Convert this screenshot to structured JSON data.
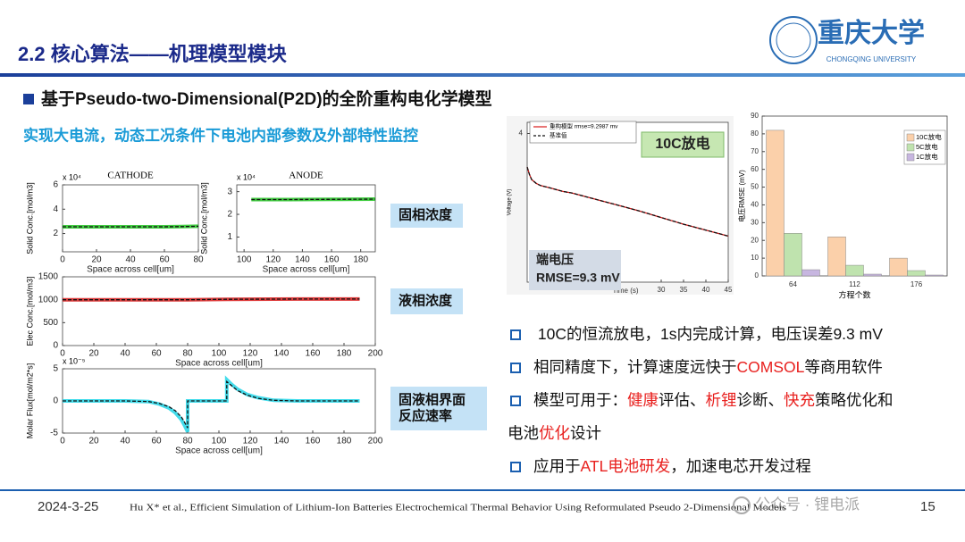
{
  "header": {
    "title": "2.2 核心算法——机理模型模块",
    "logo_name": "重庆大学",
    "logo_subtitle": "CHONGQING UNIVERSITY"
  },
  "heading": "基于Pseudo-two-Dimensional(P2D)的全阶重构电化学模型",
  "subheading": "实现大电流，动态工况条件下电池内部参数及外部特性监控",
  "plots": [
    {
      "title": "CATHODE",
      "exponent": "x 10⁴",
      "xlabel": "Space across cell[um]",
      "ylabel": "Solid Conc.[mol/m3]",
      "xlim": [
        0,
        80
      ],
      "ylim": [
        0.5,
        6
      ],
      "xticks": [
        0,
        20,
        40,
        60,
        80
      ],
      "yticks": [
        2,
        4,
        6
      ],
      "series": [
        {
          "color": "#22c422",
          "line_style": "band",
          "x": [
            0,
            20,
            40,
            60,
            70,
            80
          ],
          "values": [
            2.55,
            2.55,
            2.55,
            2.55,
            2.57,
            2.6
          ]
        },
        {
          "color": "#111111",
          "line_style": "dashed",
          "x": [
            0,
            20,
            40,
            60,
            70,
            80
          ],
          "values": [
            2.55,
            2.55,
            2.55,
            2.55,
            2.57,
            2.6
          ]
        }
      ]
    },
    {
      "title": "ANODE",
      "exponent": "x 10⁴",
      "xlabel": "Space across cell[um]",
      "ylabel": "Solid Conc.[mol/m3]",
      "xlim": [
        95,
        190
      ],
      "ylim": [
        0.35,
        3.3
      ],
      "xticks": [
        100,
        120,
        140,
        160,
        180
      ],
      "yticks": [
        1,
        2,
        3
      ],
      "series": [
        {
          "color": "#22c422",
          "line_style": "band",
          "x": [
            105,
            130,
            160,
            190
          ],
          "values": [
            2.65,
            2.65,
            2.66,
            2.67
          ]
        },
        {
          "color": "#111111",
          "line_style": "dashed",
          "x": [
            105,
            130,
            160,
            190
          ],
          "values": [
            2.65,
            2.65,
            2.66,
            2.67
          ]
        }
      ]
    },
    {
      "xlabel": "Space across cell[um]",
      "ylabel": "Elec Conc.[mol/m3]",
      "xlim": [
        0,
        200
      ],
      "ylim": [
        0,
        1500
      ],
      "xticks": [
        0,
        20,
        40,
        60,
        80,
        100,
        120,
        140,
        160,
        180,
        200
      ],
      "yticks": [
        0,
        500,
        1000,
        1500
      ],
      "series": [
        {
          "color": "#d81b1b",
          "line_style": "band",
          "x": [
            0,
            40,
            80,
            105,
            150,
            190
          ],
          "values": [
            1000,
            1000,
            1000,
            1010,
            1015,
            1015
          ]
        },
        {
          "color": "#111111",
          "line_style": "dashed",
          "x": [
            0,
            40,
            80,
            105,
            150,
            190
          ],
          "values": [
            1000,
            1000,
            1000,
            1010,
            1015,
            1015
          ]
        }
      ]
    },
    {
      "exponent": "x 10⁻⁵",
      "xlabel": "Space across cell[um]",
      "ylabel": "Molar Flux[mol/m2*s]",
      "xlim": [
        0,
        200
      ],
      "ylim": [
        -5,
        5
      ],
      "xticks": [
        0,
        20,
        40,
        60,
        80,
        100,
        120,
        140,
        160,
        180,
        200
      ],
      "yticks": [
        -5,
        0,
        5
      ],
      "series": [
        {
          "color": "#22d6e8",
          "line_style": "band",
          "x": [
            0,
            20,
            40,
            55,
            62,
            68,
            72,
            76,
            78,
            80,
            80,
            105,
            105,
            108,
            112,
            118,
            125,
            135,
            150,
            170,
            190
          ],
          "values": [
            0,
            0,
            0,
            -0.1,
            -0.5,
            -1.1,
            -1.8,
            -2.9,
            -3.8,
            -4.8,
            0,
            0,
            3.3,
            2.6,
            1.8,
            1,
            0.5,
            0.1,
            0,
            0,
            0
          ]
        },
        {
          "color": "#111111",
          "line_style": "dashed",
          "x": [
            0,
            20,
            40,
            55,
            62,
            68,
            72,
            76,
            78,
            80,
            80,
            105,
            105,
            108,
            112,
            118,
            125,
            135,
            150,
            170,
            190
          ],
          "values": [
            0,
            0,
            0,
            -0.1,
            -0.4,
            -0.9,
            -1.5,
            -2.5,
            -3.3,
            -4.2,
            0,
            0,
            3,
            2.4,
            1.6,
            0.9,
            0.4,
            0.1,
            0,
            0,
            0
          ]
        }
      ]
    },
    {
      "xlabel": "Time (s)",
      "ylabel": "Voltage (V)",
      "xlim": [
        0,
        45
      ],
      "ylim": [
        2,
        4.15
      ],
      "xticks": [
        30,
        35,
        40,
        45
      ],
      "yticks": [
        4
      ],
      "series": [
        {
          "name": "重构模型 rmse=9.2987 mv",
          "color": "#d81b1b",
          "line_style": "solid",
          "x": [
            0,
            0.5,
            1,
            2,
            3,
            5,
            8,
            10,
            15,
            20,
            25,
            30,
            35,
            40,
            45
          ],
          "values": [
            3.55,
            3.45,
            3.38,
            3.33,
            3.3,
            3.27,
            3.22,
            3.2,
            3.12,
            3.04,
            2.96,
            2.87,
            2.78,
            2.7,
            2.62
          ]
        },
        {
          "name": "基准值",
          "color": "#111111",
          "line_style": "dashed",
          "x": [
            0,
            0.5,
            1,
            2,
            3,
            5,
            8,
            10,
            15,
            20,
            25,
            30,
            35,
            40,
            45
          ],
          "values": [
            3.55,
            3.45,
            3.38,
            3.33,
            3.3,
            3.27,
            3.22,
            3.2,
            3.12,
            3.04,
            2.96,
            2.87,
            2.78,
            2.7,
            2.62
          ]
        }
      ]
    }
  ],
  "region_labels": [
    [
      "固相浓度"
    ],
    [
      "液相浓度"
    ],
    [
      "固液相界面",
      "反应速率"
    ]
  ],
  "voltage_notes": {
    "case": "10C放电",
    "label": "端电压",
    "rmse": "RMSE=9.3 mV"
  },
  "bar_chart": {
    "type": "bar",
    "xlabel": "方程个数",
    "ylabel": "电压RMSE (mV)",
    "categories": [
      "64",
      "112",
      "176"
    ],
    "ylim": [
      0,
      90
    ],
    "yticks": [
      0,
      10,
      20,
      30,
      40,
      50,
      60,
      70,
      80,
      90
    ],
    "series": [
      {
        "name": "10C放电",
        "color": "#fbd0aa",
        "values": [
          82,
          22,
          10
        ]
      },
      {
        "name": "5C放电",
        "color": "#bfe3ae",
        "values": [
          24,
          6,
          3
        ]
      },
      {
        "name": "1C放电",
        "color": "#c7b6e0",
        "values": [
          3.5,
          1,
          0.5
        ]
      }
    ]
  },
  "bullets": [
    {
      "lines": [
        [
          {
            "text": " 10C的恒流放电，1s内完成计算，电压误差9.3 mV"
          }
        ]
      ]
    },
    {
      "lines": [
        [
          {
            "text": "相同精度下，计算速度远快于"
          },
          {
            "text": "COMSOL",
            "color": "#e8201e"
          },
          {
            "text": "等商用软件"
          }
        ]
      ]
    },
    {
      "lines": [
        [
          {
            "text": "模型可用于："
          },
          {
            "text": "健康",
            "color": "#e8201e"
          },
          {
            "text": "评估、"
          },
          {
            "text": "析锂",
            "color": "#e8201e"
          },
          {
            "text": "诊断、"
          },
          {
            "text": "快充",
            "color": "#e8201e"
          },
          {
            "text": "策略优化和"
          }
        ],
        [
          {
            "text": "电池"
          },
          {
            "text": "优化",
            "color": "#e8201e"
          },
          {
            "text": "设计"
          }
        ]
      ]
    },
    {
      "lines": [
        [
          {
            "text": "应用于"
          },
          {
            "text": "ATL电池研发",
            "color": "#e8201e"
          },
          {
            "text": "，加速电芯开发过程"
          }
        ]
      ]
    }
  ],
  "footer": {
    "date": "2024-3-25",
    "citation": "Hu X* et al., Efficient Simulation of Lithium-Ion Batteries Electrochemical Thermal Behavior Using Reformulated Pseudo 2-Dimensional Models",
    "page": "15",
    "watermark": "公众号 · 锂电派"
  }
}
